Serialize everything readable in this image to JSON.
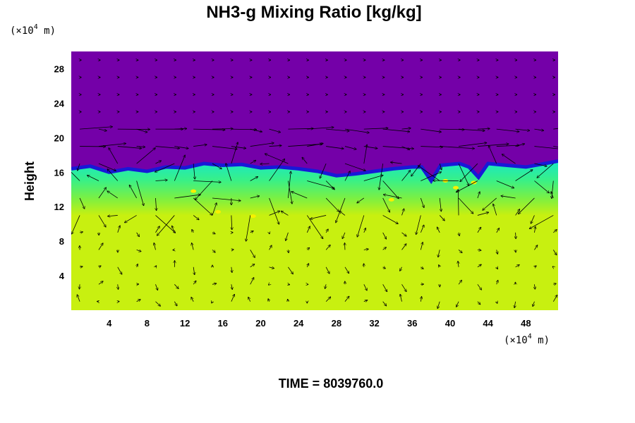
{
  "chart_data": {
    "type": "heatmap",
    "title": "NH3-g Mixing Ratio [kg/kg]",
    "ylabel": "Height",
    "xlabel": "",
    "x_unit": {
      "prefix": "(×10",
      "exp": "4",
      "suffix": " m)"
    },
    "y_unit": {
      "prefix": "(×10",
      "exp": "4",
      "suffix": " m)"
    },
    "xlim": [
      0,
      51.4
    ],
    "ylim": [
      0,
      30
    ],
    "x_ticks": [
      4,
      8,
      12,
      16,
      20,
      24,
      28,
      32,
      36,
      40,
      44,
      48
    ],
    "y_ticks": [
      4,
      8,
      12,
      16,
      20,
      24,
      28
    ],
    "grid": false,
    "overlay": "wind vectors",
    "colors": {
      "upper": "#7400a8",
      "transition": "#1818d8",
      "band_high": "#18e6c6",
      "band_mid": "#38f088",
      "band_low": "#7ef040",
      "lower": "#c8f010",
      "yellow_spots": "#f8f000",
      "vector": "#000000"
    },
    "boundary_upper_km": [
      [
        0,
        16.4
      ],
      [
        2,
        16.7
      ],
      [
        4,
        16.0
      ],
      [
        6,
        16.4
      ],
      [
        8,
        16.1
      ],
      [
        10,
        16.6
      ],
      [
        12,
        16.5
      ],
      [
        14,
        17.0
      ],
      [
        16,
        16.8
      ],
      [
        18,
        16.9
      ],
      [
        20,
        16.5
      ],
      [
        22,
        16.6
      ],
      [
        24,
        16.4
      ],
      [
        26,
        16.1
      ],
      [
        28,
        15.6
      ],
      [
        30,
        15.8
      ],
      [
        32,
        16.1
      ],
      [
        34,
        16.4
      ],
      [
        36,
        16.6
      ],
      [
        37,
        16.6
      ],
      [
        38,
        15.0
      ],
      [
        39,
        16.8
      ],
      [
        41,
        17.0
      ],
      [
        42,
        16.6
      ],
      [
        43,
        15.4
      ],
      [
        44,
        17.0
      ],
      [
        46,
        16.8
      ],
      [
        48,
        16.6
      ],
      [
        50,
        17.0
      ],
      [
        51.4,
        17.3
      ]
    ],
    "band_lower_km": 11.0,
    "time_label": "TIME = 8039760.0"
  }
}
